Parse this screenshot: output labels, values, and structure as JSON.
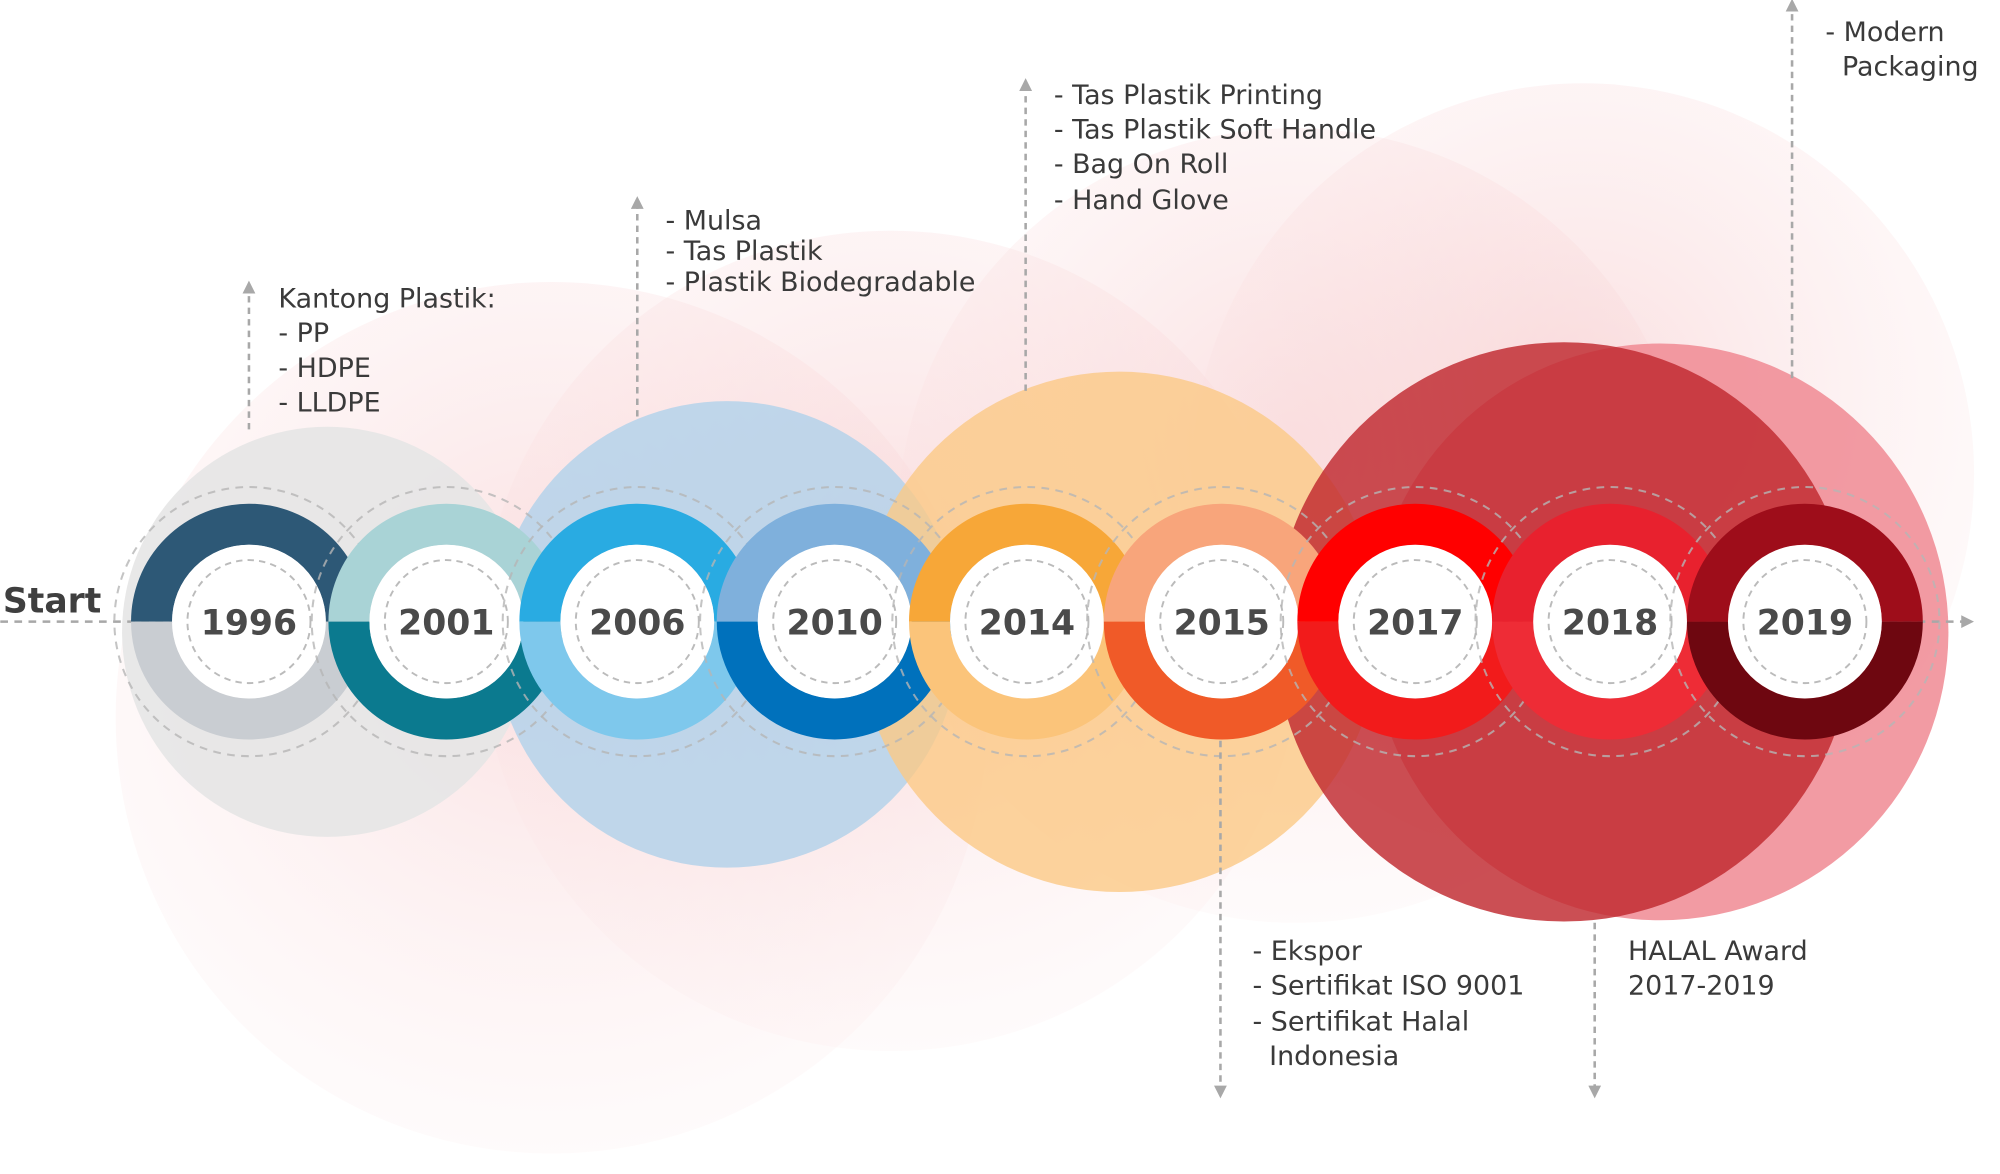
{
  "start": "Start",
  "milestones": [
    {
      "year": "1996"
    },
    {
      "year": "2001"
    },
    {
      "year": "2006"
    },
    {
      "year": "2010"
    },
    {
      "year": "2014"
    },
    {
      "year": "2015"
    },
    {
      "year": "2017"
    },
    {
      "year": "2018"
    },
    {
      "year": "2019"
    }
  ],
  "notes": [
    {
      "lines": [
        "Kantong Plastik:",
        "- PP",
        "- HDPE",
        "- LLDPE"
      ]
    },
    {
      "lines": [
        "- Mulsa",
        "- Tas Plastik",
        "- Plastik Biodegradable"
      ]
    },
    {
      "lines": [
        "- Tas Plastik Printing",
        "- Tas Plastik Soft Handle",
        "- Bag On Roll",
        "- Hand Glove"
      ]
    },
    {
      "lines": [
        "- Modern",
        "Packaging"
      ]
    },
    {
      "lines": [
        "- Ekspor",
        "- Sertifikat ISO 9001",
        "- Sertifikat Halal",
        "Indonesia"
      ]
    },
    {
      "lines": [
        "HALAL Award",
        "2017-2019"
      ]
    }
  ]
}
